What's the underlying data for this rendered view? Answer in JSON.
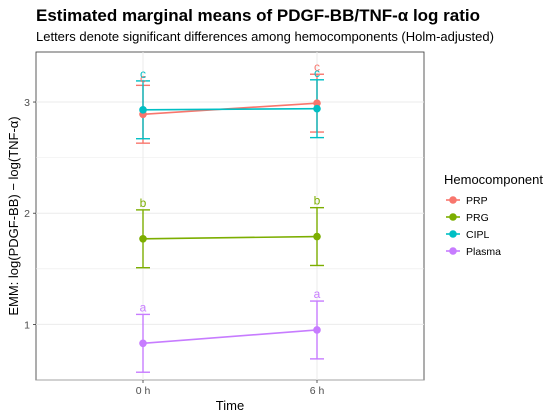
{
  "chart_data": {
    "type": "line",
    "title": "Estimated marginal means of PDGF-BB/TNF-α log ratio",
    "subtitle": "Letters denote significant differences among hemocomponents (Holm-adjusted)",
    "xlabel": "Time",
    "ylabel": "EMM: log(PDGF-BB) − log(TNF-α)",
    "categories": [
      "0 h",
      "6 h"
    ],
    "ylim": [
      0.5,
      3.45
    ],
    "yticks": [
      1,
      2,
      3
    ],
    "grid": true,
    "legend": {
      "title": "Hemocomponent",
      "position": "right"
    },
    "series": [
      {
        "name": "PRP",
        "color": "#F8766D",
        "values": [
          2.89,
          2.99
        ],
        "lower": [
          2.63,
          2.73
        ],
        "upper": [
          3.15,
          3.25
        ],
        "letters": [
          "c",
          "c"
        ]
      },
      {
        "name": "PRG",
        "color": "#7CAE00",
        "values": [
          1.77,
          1.79
        ],
        "lower": [
          1.51,
          1.53
        ],
        "upper": [
          2.03,
          2.05
        ],
        "letters": [
          "b",
          "b"
        ]
      },
      {
        "name": "CIPL",
        "color": "#00BFC4",
        "values": [
          2.93,
          2.94
        ],
        "lower": [
          2.67,
          2.68
        ],
        "upper": [
          3.19,
          3.2
        ],
        "letters": [
          "c",
          "c"
        ]
      },
      {
        "name": "Plasma",
        "color": "#C77CFF",
        "values": [
          0.83,
          0.95
        ],
        "lower": [
          0.57,
          0.69
        ],
        "upper": [
          1.09,
          1.21
        ],
        "letters": [
          "a",
          "a"
        ]
      }
    ]
  }
}
